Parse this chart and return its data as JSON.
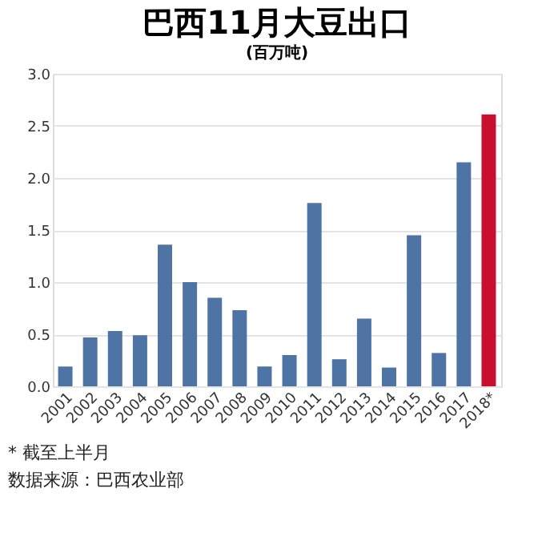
{
  "chart_data": {
    "type": "bar",
    "title": "巴西11月大豆出口",
    "subtitle": "(百万吨)",
    "categories": [
      "2001",
      "2002",
      "2003",
      "2004",
      "2005",
      "2006",
      "2007",
      "2008",
      "2009",
      "2010",
      "2011",
      "2012",
      "2013",
      "2014",
      "2015",
      "2016",
      "2017",
      "2018*"
    ],
    "values": [
      0.19,
      0.47,
      0.53,
      0.49,
      1.36,
      1.0,
      0.85,
      0.73,
      0.19,
      0.3,
      1.76,
      0.26,
      0.65,
      0.18,
      1.45,
      0.32,
      2.15,
      2.61
    ],
    "colors": [
      "#4e74a6",
      "#4e74a6",
      "#4e74a6",
      "#4e74a6",
      "#4e74a6",
      "#4e74a6",
      "#4e74a6",
      "#4e74a6",
      "#4e74a6",
      "#4e74a6",
      "#4e74a6",
      "#4e74a6",
      "#4e74a6",
      "#4e74a6",
      "#4e74a6",
      "#4e74a6",
      "#4e74a6",
      "#c8102e"
    ],
    "ylim": [
      0,
      3
    ],
    "yticks": [
      {
        "value": 0,
        "label": "0.0"
      },
      {
        "value": 0.5,
        "label": "0.5"
      },
      {
        "value": 1,
        "label": "1.0"
      },
      {
        "value": 1.5,
        "label": "1.5"
      },
      {
        "value": 2,
        "label": "2.0"
      },
      {
        "value": 2.5,
        "label": "2.5"
      },
      {
        "value": 3,
        "label": "3.0"
      }
    ],
    "grid": "y",
    "annotations": [
      "* 截至上半月",
      "数据来源：巴西农业部"
    ]
  }
}
